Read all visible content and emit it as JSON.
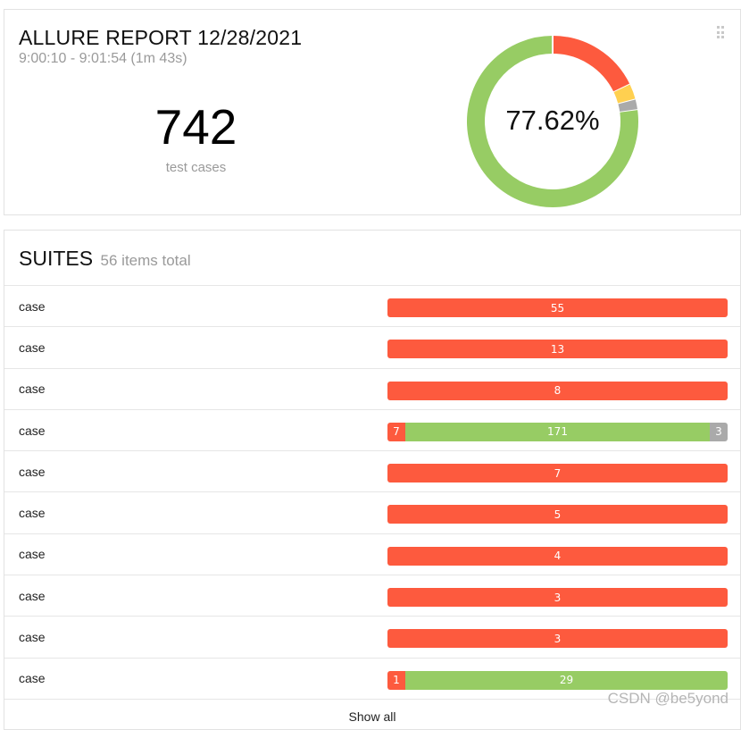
{
  "summary": {
    "title": "ALLURE REPORT 12/28/2021",
    "time_range": "9:00:10 - 9:01:54 (1m 43s)",
    "total_count": "742",
    "total_label": "test cases",
    "success_percent": "77.62%",
    "donut": [
      {
        "status": "failed",
        "color": "#fd5a3e",
        "fraction": 0.18
      },
      {
        "status": "broken",
        "color": "#ffd050",
        "fraction": 0.03
      },
      {
        "status": "skipped",
        "color": "#aaaaaa",
        "fraction": 0.02
      },
      {
        "status": "passed",
        "color": "#97cc64",
        "fraction": 0.7762
      }
    ]
  },
  "suites": {
    "title": "SUITES",
    "count": "56 items total",
    "show_all": "Show all",
    "rows": [
      {
        "name": "case",
        "segments": [
          {
            "status": "failed",
            "value": 55,
            "label": "55"
          }
        ]
      },
      {
        "name": "case",
        "segments": [
          {
            "status": "failed",
            "value": 13,
            "label": "13"
          }
        ]
      },
      {
        "name": "case",
        "segments": [
          {
            "status": "failed",
            "value": 8,
            "label": "8"
          }
        ]
      },
      {
        "name": "case",
        "segments": [
          {
            "status": "failed",
            "value": 7,
            "label": "7"
          },
          {
            "status": "passed",
            "value": 171,
            "label": "171"
          },
          {
            "status": "skipped",
            "value": 3,
            "label": "3"
          }
        ]
      },
      {
        "name": "case",
        "segments": [
          {
            "status": "failed",
            "value": 7,
            "label": "7"
          }
        ]
      },
      {
        "name": "case",
        "segments": [
          {
            "status": "failed",
            "value": 5,
            "label": "5"
          }
        ]
      },
      {
        "name": "case",
        "segments": [
          {
            "status": "failed",
            "value": 4,
            "label": "4"
          }
        ]
      },
      {
        "name": "case",
        "segments": [
          {
            "status": "failed",
            "value": 3,
            "label": "3"
          }
        ]
      },
      {
        "name": "case",
        "segments": [
          {
            "status": "failed",
            "value": 3,
            "label": "3"
          }
        ]
      },
      {
        "name": "case",
        "segments": [
          {
            "status": "failed",
            "value": 1,
            "label": "1"
          },
          {
            "status": "passed",
            "value": 29,
            "label": "29"
          }
        ]
      }
    ]
  },
  "watermark": "CSDN @be5yond"
}
